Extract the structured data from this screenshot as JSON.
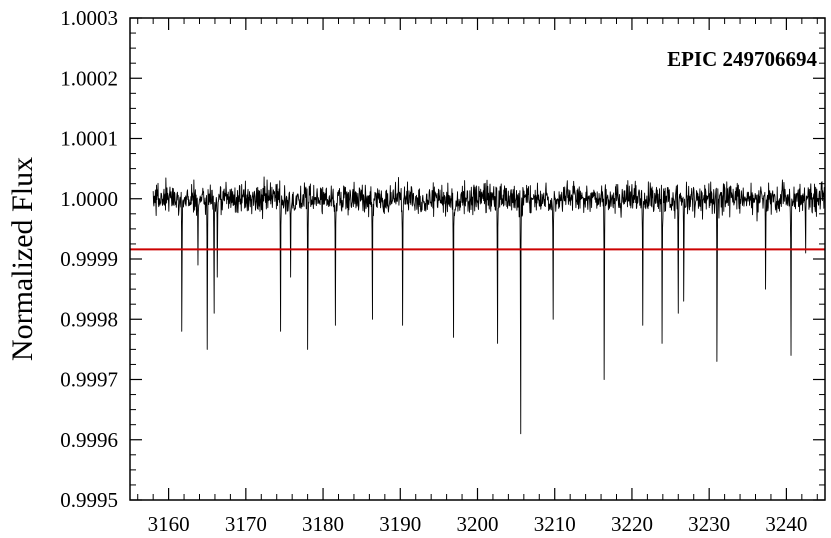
{
  "chart_data": {
    "type": "line",
    "title": "",
    "xlabel": "",
    "ylabel": "Normalized Flux",
    "annotation": "EPIC 249706694",
    "xlim": [
      3155,
      3245
    ],
    "ylim": [
      0.9995,
      1.0003
    ],
    "x_ticks": [
      3160,
      3170,
      3180,
      3190,
      3200,
      3210,
      3220,
      3230,
      3240
    ],
    "x_tick_labels": [
      "3160",
      "3170",
      "3180",
      "3190",
      "3200",
      "3210",
      "3220",
      "3230",
      "3240"
    ],
    "y_ticks": [
      0.9995,
      0.9996,
      0.9997,
      0.9998,
      0.9999,
      1.0,
      1.0001,
      1.0002,
      1.0003
    ],
    "y_tick_labels": [
      "0.9995",
      "0.9996",
      "0.9997",
      "0.9998",
      "0.9999",
      "1.0000",
      "1.0001",
      "1.0002",
      "1.0003"
    ],
    "grid": false,
    "series": [
      {
        "color": "#000000",
        "baseline": 1.0,
        "scatter_amplitude": 3e-05,
        "x_range": [
          3158,
          3245
        ],
        "dips": [
          {
            "x": 3161.7,
            "y": 0.99978
          },
          {
            "x": 3163.8,
            "y": 0.99989
          },
          {
            "x": 3165.0,
            "y": 0.99975
          },
          {
            "x": 3165.9,
            "y": 0.99981
          },
          {
            "x": 3166.3,
            "y": 0.99987
          },
          {
            "x": 3174.5,
            "y": 0.99978
          },
          {
            "x": 3175.8,
            "y": 0.99987
          },
          {
            "x": 3178.0,
            "y": 0.99975
          },
          {
            "x": 3181.6,
            "y": 0.99979
          },
          {
            "x": 3186.4,
            "y": 0.9998
          },
          {
            "x": 3190.3,
            "y": 0.99979
          },
          {
            "x": 3196.9,
            "y": 0.99977
          },
          {
            "x": 3202.6,
            "y": 0.99976
          },
          {
            "x": 3205.6,
            "y": 0.99961
          },
          {
            "x": 3209.8,
            "y": 0.9998
          },
          {
            "x": 3216.4,
            "y": 0.9997
          },
          {
            "x": 3221.4,
            "y": 0.99979
          },
          {
            "x": 3223.9,
            "y": 0.99976
          },
          {
            "x": 3226.0,
            "y": 0.99981
          },
          {
            "x": 3226.7,
            "y": 0.99983
          },
          {
            "x": 3231.0,
            "y": 0.99973
          },
          {
            "x": 3237.3,
            "y": 0.99985
          },
          {
            "x": 3240.6,
            "y": 0.99974
          },
          {
            "x": 3242.5,
            "y": 0.99991
          }
        ]
      }
    ],
    "reference_line": {
      "y": 0.999916,
      "color": "#cc0000"
    }
  }
}
